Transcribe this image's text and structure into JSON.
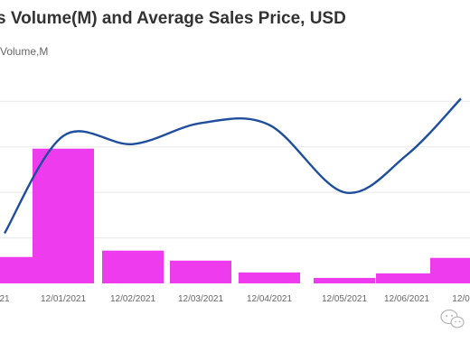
{
  "chart_data": {
    "type": "bar",
    "title": "s Volume(M) and Average Sales Price, USD",
    "subtitle": "Volume,M",
    "categories": [
      "21",
      "12/01/2021",
      "12/02/2021",
      "12/03/2021",
      "12/04/2021",
      "12/05/2021",
      "12/06/2021",
      "12/0"
    ],
    "series": [
      {
        "type": "bar",
        "values": [
          0.29,
          1.48,
          0.36,
          0.25,
          0.12,
          0.06,
          0.11,
          0.28
        ],
        "color": "#ee3bee"
      },
      {
        "type": "line",
        "smooth": true,
        "values": [
          0.55,
          1.62,
          1.53,
          1.76,
          1.74,
          1.0,
          1.41,
          2.03
        ],
        "color": "#1f4e9c"
      }
    ],
    "ylim": [
      0,
      2.3
    ],
    "grid": true,
    "legend": "none"
  },
  "colors": {
    "grid": "#e8e8e8",
    "tick_text": "#666666",
    "title": "#333333"
  },
  "icons": {
    "watermark": "wechat-bubble-icon"
  }
}
